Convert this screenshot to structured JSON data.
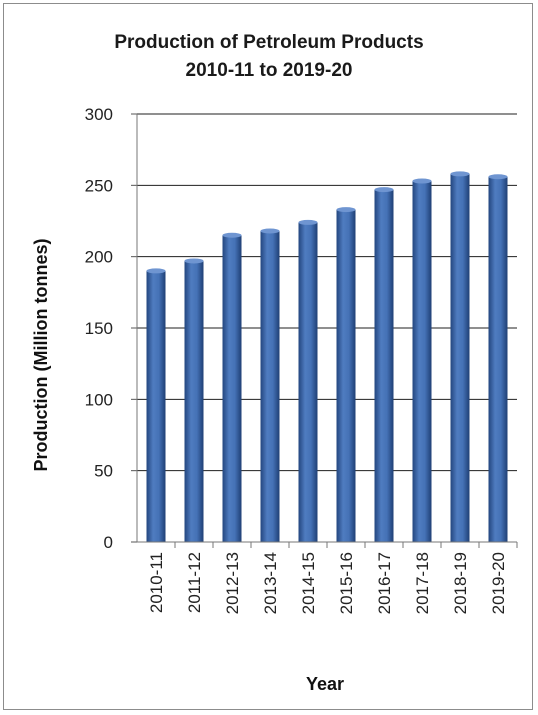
{
  "chart_data": {
    "type": "bar",
    "title": "Production of Petroleum Products",
    "subtitle": "2010-11 to 2019-20",
    "xlabel": "Year",
    "ylabel": "Production (Million  tonnes)",
    "categories": [
      "2010-11",
      "2011-12",
      "2012-13",
      "2013-14",
      "2014-15",
      "2015-16",
      "2016-17",
      "2017-18",
      "2018-19",
      "2019-20"
    ],
    "values": [
      190,
      197,
      215,
      218,
      224,
      233,
      247,
      253,
      258,
      256
    ],
    "ylim": [
      0,
      300
    ],
    "yticks": [
      0,
      50,
      100,
      150,
      200,
      250,
      300
    ],
    "grid": true,
    "legend": "none",
    "bar_color": "#3e67a8"
  }
}
